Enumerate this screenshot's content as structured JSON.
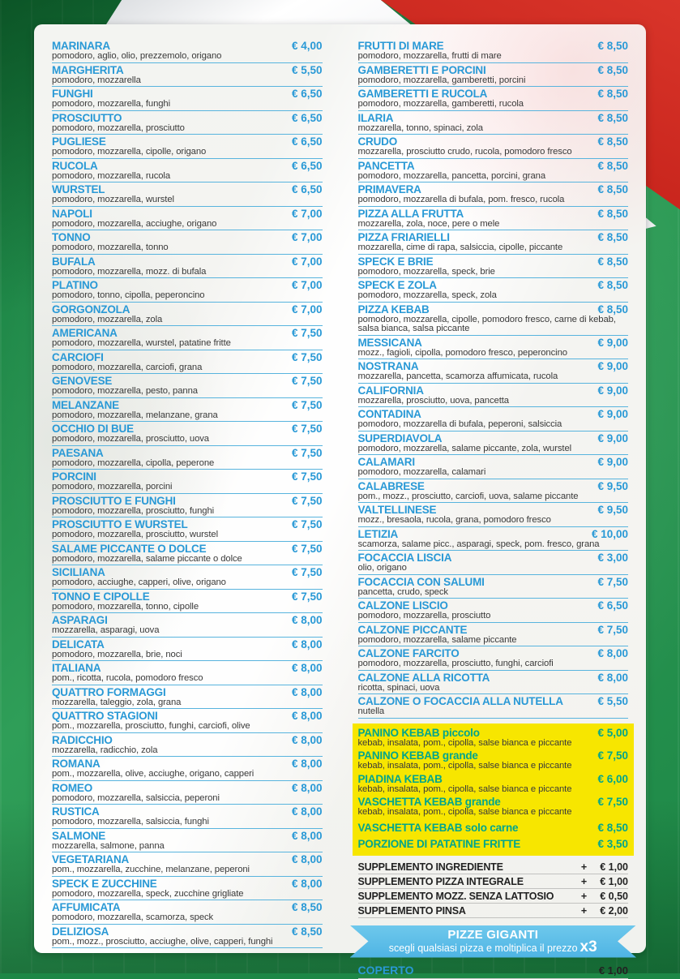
{
  "colors": {
    "accent_blue": "#2999d6",
    "separator_blue": "#58b4de",
    "ingredient_gray": "#3a3a3a",
    "kebab_teal": "#00a58c",
    "kebab_yellow": "#f7e600",
    "banner_blue": "#4eb4e4",
    "flag_green": "#1d8746",
    "flag_red": "#c01d16"
  },
  "menu": {
    "left_column": [
      {
        "name": "MARINARA",
        "ingredients": "pomodoro, aglio, olio, prezzemolo, origano",
        "price": "€ 4,00"
      },
      {
        "name": "MARGHERITA",
        "ingredients": "pomodoro, mozzarella",
        "price": "€ 5,50"
      },
      {
        "name": "FUNGHI",
        "ingredients": "pomodoro, mozzarella, funghi",
        "price": "€ 6,50"
      },
      {
        "name": "PROSCIUTTO",
        "ingredients": "pomodoro, mozzarella, prosciutto",
        "price": "€ 6,50"
      },
      {
        "name": "PUGLIESE",
        "ingredients": "pomodoro, mozzarella, cipolle, origano",
        "price": "€ 6,50"
      },
      {
        "name": "RUCOLA",
        "ingredients": "pomodoro, mozzarella, rucola",
        "price": "€ 6,50"
      },
      {
        "name": "WURSTEL",
        "ingredients": "pomodoro, mozzarella, wurstel",
        "price": "€ 6,50"
      },
      {
        "name": "NAPOLI",
        "ingredients": "pomodoro, mozzarella, acciughe, origano",
        "price": "€ 7,00"
      },
      {
        "name": "TONNO",
        "ingredients": "pomodoro, mozzarella, tonno",
        "price": "€ 7,00"
      },
      {
        "name": "BUFALA",
        "ingredients": "pomodoro, mozzarella, mozz. di bufala",
        "price": "€ 7,00"
      },
      {
        "name": "PLATINO",
        "ingredients": "pomodoro, tonno, cipolla, peperoncino",
        "price": "€ 7,00"
      },
      {
        "name": "GORGONZOLA",
        "ingredients": "pomodoro, mozzarella, zola",
        "price": "€ 7,00"
      },
      {
        "name": "AMERICANA",
        "ingredients": "pomodoro, mozzarella, wurstel, patatine fritte",
        "price": "€ 7,50"
      },
      {
        "name": "CARCIOFI",
        "ingredients": "pomodoro, mozzarella, carciofi, grana",
        "price": "€ 7,50"
      },
      {
        "name": "GENOVESE",
        "ingredients": "pomodoro, mozzarella, pesto, panna",
        "price": "€ 7,50"
      },
      {
        "name": "MELANZANE",
        "ingredients": "pomodoro, mozzarella, melanzane, grana",
        "price": "€ 7,50"
      },
      {
        "name": "OCCHIO DI BUE",
        "ingredients": "pomodoro, mozzarella, prosciutto, uova",
        "price": "€ 7,50"
      },
      {
        "name": "PAESANA",
        "ingredients": "pomodoro, mozzarella, cipolla, peperone",
        "price": "€ 7,50"
      },
      {
        "name": "PORCINI",
        "ingredients": "pomodoro, mozzarella, porcini",
        "price": "€ 7,50"
      },
      {
        "name": "PROSCIUTTO E FUNGHI",
        "ingredients": "pomodoro, mozzarella, prosciutto, funghi",
        "price": "€ 7,50"
      },
      {
        "name": "PROSCIUTTO E WURSTEL",
        "ingredients": "pomodoro, mozzarella, prosciutto, wurstel",
        "price": "€ 7,50"
      },
      {
        "name": "SALAME PICCANTE O DOLCE",
        "ingredients": "pomodoro, mozzarella, salame piccante o dolce",
        "price": "€ 7,50"
      },
      {
        "name": "SICILIANA",
        "ingredients": "pomodoro, acciughe, capperi, olive, origano",
        "price": "€ 7,50"
      },
      {
        "name": "TONNO E CIPOLLE",
        "ingredients": "pomodoro, mozzarella, tonno, cipolle",
        "price": "€ 7,50"
      },
      {
        "name": "ASPARAGI",
        "ingredients": "mozzarella, asparagi, uova",
        "price": "€ 8,00"
      },
      {
        "name": "DELICATA",
        "ingredients": "pomodoro, mozzarella, brie, noci",
        "price": "€ 8,00"
      },
      {
        "name": "ITALIANA",
        "ingredients": "pom., ricotta, rucola, pomodoro fresco",
        "price": "€ 8,00"
      },
      {
        "name": "QUATTRO FORMAGGI",
        "ingredients": "mozzarella, taleggio, zola, grana",
        "price": "€ 8,00"
      },
      {
        "name": "QUATTRO STAGIONI",
        "ingredients": "pom., mozzarella, prosciutto, funghi, carciofi, olive",
        "price": "€ 8,00"
      },
      {
        "name": "RADICCHIO",
        "ingredients": "mozzarella, radicchio, zola",
        "price": "€ 8,00"
      },
      {
        "name": "ROMANA",
        "ingredients": "pom., mozzarella, olive, acciughe, origano, capperi",
        "price": "€ 8,00"
      },
      {
        "name": "ROMEO",
        "ingredients": "pomodoro, mozzarella, salsiccia, peperoni",
        "price": "€ 8,00"
      },
      {
        "name": "RUSTICA",
        "ingredients": "pomodoro, mozzarella, salsiccia, funghi",
        "price": "€ 8,00"
      },
      {
        "name": "SALMONE",
        "ingredients": "mozzarella, salmone, panna",
        "price": "€ 8,00"
      },
      {
        "name": "VEGETARIANA",
        "ingredients": "pom., mozzarella, zucchine, melanzane, peperoni",
        "price": "€ 8,00"
      },
      {
        "name": "SPECK E ZUCCHINE",
        "ingredients": "pomodoro, mozzarella, speck, zucchine grigliate",
        "price": "€ 8,00"
      },
      {
        "name": "AFFUMICATA",
        "ingredients": "pomodoro, mozzarella, scamorza, speck",
        "price": "€ 8,50"
      },
      {
        "name": "DELIZIOSA",
        "ingredients": "pom., mozz., prosciutto, acciughe, olive, capperi, funghi",
        "price": "€ 8,50"
      }
    ],
    "right_column": [
      {
        "name": "FRUTTI DI MARE",
        "ingredients": "pomodoro, mozzarella, frutti di mare",
        "price": "€ 8,50"
      },
      {
        "name": "GAMBERETTI E PORCINI",
        "ingredients": "pomodoro, mozzarella, gamberetti, porcini",
        "price": "€ 8,50"
      },
      {
        "name": "GAMBERETTI E RUCOLA",
        "ingredients": "pomodoro, mozzarella, gamberetti, rucola",
        "price": "€ 8,50"
      },
      {
        "name": "ILARIA",
        "ingredients": "mozzarella, tonno, spinaci, zola",
        "price": "€ 8,50"
      },
      {
        "name": "CRUDO",
        "ingredients": "mozzarella, prosciutto crudo, rucola, pomodoro fresco",
        "price": "€ 8,50"
      },
      {
        "name": "PANCETTA",
        "ingredients": "pomodoro, mozzarella, pancetta, porcini, grana",
        "price": "€ 8,50"
      },
      {
        "name": "PRIMAVERA",
        "ingredients": "pomodoro, mozzarella di bufala, pom. fresco, rucola",
        "price": "€ 8,50"
      },
      {
        "name": "PIZZA ALLA FRUTTA",
        "ingredients": "mozzarella, zola, noce, pere o mele",
        "price": "€ 8,50"
      },
      {
        "name": "PIZZA FRIARIELLI",
        "ingredients": "mozzarella, cime di rapa, salsiccia, cipolle, piccante",
        "price": "€ 8,50"
      },
      {
        "name": "SPECK E BRIE",
        "ingredients": "pomodoro, mozzarella, speck, brie",
        "price": "€ 8,50"
      },
      {
        "name": "SPECK E ZOLA",
        "ingredients": "pomodoro, mozzarella, speck, zola",
        "price": "€ 8,50"
      },
      {
        "name": "PIZZA KEBAB",
        "ingredients": "pomodoro, mozzarella, cipolle, pomodoro fresco, carne di kebab, salsa bianca, salsa piccante",
        "price": "€ 8,50"
      },
      {
        "name": "MESSICANA",
        "ingredients": "mozz., fagioli, cipolla, pomodoro fresco, peperoncino",
        "price": "€ 9,00"
      },
      {
        "name": "NOSTRANA",
        "ingredients": "mozzarella, pancetta, scamorza affumicata, rucola",
        "price": "€ 9,00"
      },
      {
        "name": "CALIFORNIA",
        "ingredients": "mozzarella, prosciutto, uova, pancetta",
        "price": "€ 9,00"
      },
      {
        "name": "CONTADINA",
        "ingredients": "pomodoro, mozzarella di bufala, peperoni, salsiccia",
        "price": "€ 9,00"
      },
      {
        "name": "SUPERDIAVOLA",
        "ingredients": "pomodoro, mozzarella, salame piccante, zola, wurstel",
        "price": "€ 9,00"
      },
      {
        "name": "CALAMARI",
        "ingredients": "pomodoro, mozzarella, calamari",
        "price": "€ 9,00"
      },
      {
        "name": "CALABRESE",
        "ingredients": "pom., mozz., prosciutto, carciofi, uova, salame piccante",
        "price": "€ 9,50"
      },
      {
        "name": "VALTELLINESE",
        "ingredients": "mozz., bresaola, rucola, grana, pomodoro fresco",
        "price": "€ 9,50"
      },
      {
        "name": "LETIZIA",
        "ingredients": "scamorza, salame picc., asparagi, speck, pom. fresco, grana",
        "price": "€ 10,00"
      },
      {
        "name": "FOCACCIA LISCIA",
        "ingredients": "olio, origano",
        "price": "€ 3,00"
      },
      {
        "name": "FOCACCIA CON SALUMI",
        "ingredients": "pancetta, crudo, speck",
        "price": "€ 7,50"
      },
      {
        "name": "CALZONE LISCIO",
        "ingredients": "pomodoro, mozzarella, prosciutto",
        "price": "€ 6,50"
      },
      {
        "name": "CALZONE PICCANTE",
        "ingredients": "pomodoro, mozzarella, salame piccante",
        "price": "€ 7,50"
      },
      {
        "name": "CALZONE FARCITO",
        "ingredients": "pomodoro, mozzarella, prosciutto, funghi, carciofi",
        "price": "€ 8,00"
      },
      {
        "name": "CALZONE ALLA RICOTTA",
        "ingredients": "ricotta, spinaci, uova",
        "price": "€ 8,00"
      },
      {
        "name": "CALZONE O FOCACCIA ALLA NUTELLA",
        "ingredients": "nutella",
        "price": "€ 5,50"
      }
    ],
    "kebab_items": [
      {
        "name": "PANINO KEBAB piccolo",
        "ingredients": "kebab, insalata, pom., cipolla, salse bianca e piccante",
        "price": "€ 5,00"
      },
      {
        "name": "PANINO KEBAB grande",
        "ingredients": "kebab, insalata, pom., cipolla, salse bianca e piccante",
        "price": "€ 7,50"
      },
      {
        "name": "PIADINA KEBAB",
        "ingredients": "kebab, insalata, pom., cipolla, salse bianca e piccante",
        "price": "€ 6,00"
      },
      {
        "name": "VASCHETTA KEBAB grande",
        "ingredients": "kebab, insalata, pom., cipolla, salse bianca e piccante",
        "price": "€ 7,50"
      },
      {
        "name": "VASCHETTA KEBAB solo carne",
        "price": "€ 8,50"
      },
      {
        "name": "PORZIONE DI PATATINE FRITTE",
        "price": "€ 3,50"
      }
    ],
    "supplements": [
      {
        "label": "SUPPLEMENTO INGREDIENTE",
        "plus": "+",
        "price": "€ 1,00"
      },
      {
        "label": "SUPPLEMENTO PIZZA INTEGRALE",
        "plus": "+",
        "price": "€ 1,00"
      },
      {
        "label": "SUPPLEMENTO MOZZ. SENZA LATTOSIO",
        "plus": "+",
        "price": "€ 0,50"
      },
      {
        "label": "SUPPLEMENTO PINSA",
        "plus": "+",
        "price": "€ 2,00"
      }
    ],
    "banner": {
      "title": "PIZZE GIGANTI",
      "subtitle": "scegli qualsiasi pizza e moltiplica il prezzo",
      "multiplier": "x3"
    },
    "coperto": {
      "name": "COPERTO",
      "price": "€ 1,00"
    }
  }
}
